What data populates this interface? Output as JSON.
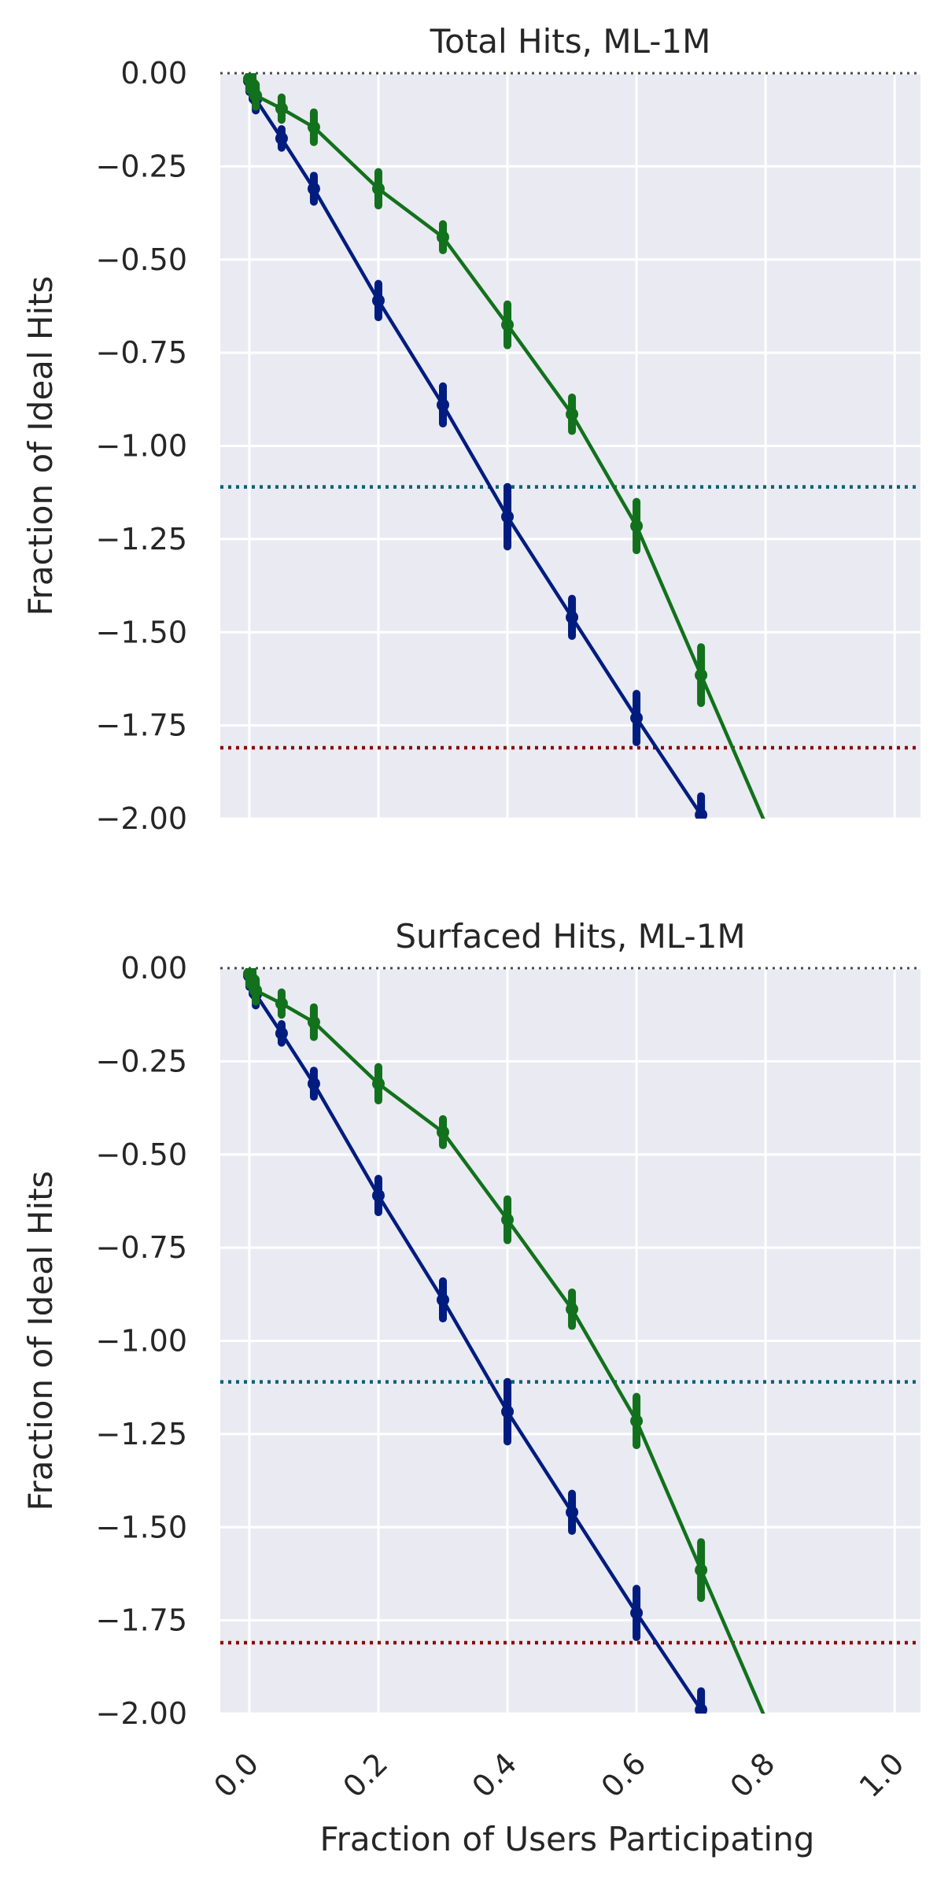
{
  "colors": {
    "background": "#ffffff",
    "plot_bg": "#eaeaf2",
    "grid": "#ffffff",
    "text": "#262626",
    "series_blue": "#001c7f",
    "series_green": "#12711c",
    "ref_zero": "#4a4a4a",
    "ref_teal": "#006374",
    "ref_red": "#8c0800"
  },
  "xlabel": "Fraction of Users Participating",
  "chart_data": [
    {
      "type": "line",
      "title": "Total Hits, ML-1M",
      "ylabel": "Fraction of Ideal Hits",
      "xlim": [
        -0.045,
        1.04
      ],
      "ylim": [
        -2.0,
        0.0
      ],
      "xticks": [
        0.0,
        0.2,
        0.4,
        0.6,
        0.8,
        1.0
      ],
      "xtick_labels": [
        "0.0",
        "0.2",
        "0.4",
        "0.6",
        "0.8",
        "1.0"
      ],
      "yticks": [
        0.0,
        -0.25,
        -0.5,
        -0.75,
        -1.0,
        -1.25,
        -1.5,
        -1.75,
        -2.0
      ],
      "ytick_labels": [
        "0.00",
        "−0.25",
        "−0.50",
        "−0.75",
        "−1.00",
        "−1.25",
        "−1.50",
        "−1.75",
        "−2.00"
      ],
      "grid": true,
      "reference_lines": [
        {
          "y": 0.0,
          "color": "#4a4a4a",
          "style": "dotted"
        },
        {
          "y": -1.11,
          "color": "#006374",
          "style": "dotted"
        },
        {
          "y": -1.81,
          "color": "#8c0800",
          "style": "dotted"
        }
      ],
      "series": [
        {
          "color": "#001c7f",
          "x": [
            0.0,
            0.005,
            0.01,
            0.05,
            0.1,
            0.2,
            0.3,
            0.4,
            0.5,
            0.6,
            0.7
          ],
          "y": [
            -0.02,
            -0.04,
            -0.07,
            -0.175,
            -0.31,
            -0.61,
            -0.89,
            -1.19,
            -1.46,
            -1.73,
            -1.99
          ],
          "err": [
            0.03,
            0.03,
            0.03,
            0.025,
            0.035,
            0.045,
            0.05,
            0.08,
            0.05,
            0.065,
            0.05
          ],
          "extend_to_x": 0.7
        },
        {
          "color": "#12711c",
          "x": [
            0.0,
            0.005,
            0.01,
            0.05,
            0.1,
            0.2,
            0.3,
            0.4,
            0.5,
            0.6,
            0.7
          ],
          "y": [
            -0.015,
            -0.03,
            -0.06,
            -0.095,
            -0.145,
            -0.31,
            -0.44,
            -0.675,
            -0.915,
            -1.215,
            -1.615
          ],
          "err": [
            0.03,
            0.03,
            0.03,
            0.03,
            0.04,
            0.045,
            0.035,
            0.055,
            0.045,
            0.065,
            0.075
          ],
          "extend_to_x": 0.765
        }
      ]
    },
    {
      "type": "line",
      "title": "Surfaced Hits, ML-1M",
      "ylabel": "Fraction of Ideal Hits",
      "xlabel": "Fraction of Users Participating",
      "xlim": [
        -0.045,
        1.04
      ],
      "ylim": [
        -2.0,
        0.0
      ],
      "xticks": [
        0.0,
        0.2,
        0.4,
        0.6,
        0.8,
        1.0
      ],
      "xtick_labels": [
        "0.0",
        "0.2",
        "0.4",
        "0.6",
        "0.8",
        "1.0"
      ],
      "yticks": [
        0.0,
        -0.25,
        -0.5,
        -0.75,
        -1.0,
        -1.25,
        -1.5,
        -1.75,
        -2.0
      ],
      "ytick_labels": [
        "0.00",
        "−0.25",
        "−0.50",
        "−0.75",
        "−1.00",
        "−1.25",
        "−1.50",
        "−1.75",
        "−2.00"
      ],
      "grid": true,
      "reference_lines": [
        {
          "y": 0.0,
          "color": "#4a4a4a",
          "style": "dotted"
        },
        {
          "y": -1.11,
          "color": "#006374",
          "style": "dotted"
        },
        {
          "y": -1.81,
          "color": "#8c0800",
          "style": "dotted"
        }
      ],
      "series": [
        {
          "color": "#001c7f",
          "x": [
            0.0,
            0.005,
            0.01,
            0.05,
            0.1,
            0.2,
            0.3,
            0.4,
            0.5,
            0.6,
            0.7
          ],
          "y": [
            -0.02,
            -0.04,
            -0.07,
            -0.175,
            -0.31,
            -0.61,
            -0.89,
            -1.19,
            -1.46,
            -1.73,
            -1.99
          ],
          "err": [
            0.03,
            0.03,
            0.03,
            0.025,
            0.035,
            0.045,
            0.05,
            0.08,
            0.05,
            0.065,
            0.05
          ],
          "extend_to_x": 0.7
        },
        {
          "color": "#12711c",
          "x": [
            0.0,
            0.005,
            0.01,
            0.05,
            0.1,
            0.2,
            0.3,
            0.4,
            0.5,
            0.6,
            0.7
          ],
          "y": [
            -0.015,
            -0.03,
            -0.06,
            -0.095,
            -0.145,
            -0.31,
            -0.44,
            -0.675,
            -0.915,
            -1.215,
            -1.615
          ],
          "err": [
            0.03,
            0.03,
            0.03,
            0.03,
            0.04,
            0.045,
            0.035,
            0.055,
            0.045,
            0.065,
            0.075
          ],
          "extend_to_x": 0.765
        }
      ]
    }
  ]
}
